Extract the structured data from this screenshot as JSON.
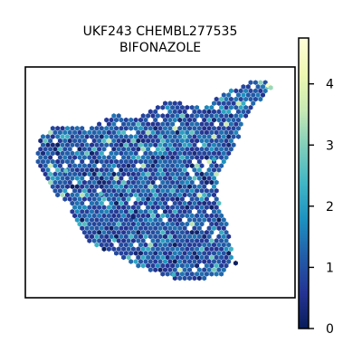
{
  "chart_data": {
    "type": "scatter",
    "title": [
      "UKF243 CHEMBL277535",
      "BIFONAZOLE"
    ],
    "xlabel": "",
    "ylabel": "",
    "grid": false,
    "axis_ticks": false,
    "marker": "hexagon",
    "colormap": "YlGnBu_r",
    "colorbar": {
      "orientation": "vertical",
      "placement": "right",
      "range": [
        0,
        4.75
      ],
      "ticks": [
        0,
        1,
        2,
        3,
        4
      ],
      "tick_labels": [
        "0",
        "1",
        "2",
        "3",
        "4"
      ]
    },
    "value_distribution": "mostly 0.5–1.5 across the tissue, sparse spots up to ~4.5",
    "points": [
      {
        "x": 0.9,
        "y": 0.92,
        "v": 4.5
      },
      {
        "x": 0.91,
        "y": 0.91,
        "v": 3.2
      },
      {
        "x": 0.15,
        "y": 0.55,
        "v": 2.8
      },
      {
        "x": 0.28,
        "y": 0.45,
        "v": 2.6
      },
      {
        "x": 0.5,
        "y": 0.7,
        "v": 2.4
      },
      {
        "x": 0.7,
        "y": 0.6,
        "v": 2.2
      },
      {
        "x": 0.33,
        "y": 0.25,
        "v": 2.5
      },
      {
        "x": 0.55,
        "y": 0.1,
        "v": 2.3
      },
      {
        "x": 0.78,
        "y": 0.15,
        "v": 0.1
      },
      {
        "x": 0.4,
        "y": 0.35,
        "v": 0.2
      }
    ]
  }
}
